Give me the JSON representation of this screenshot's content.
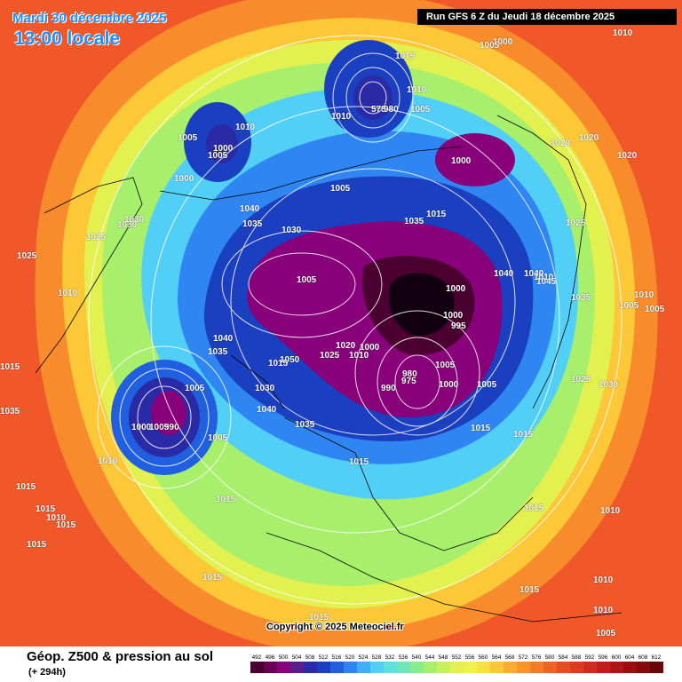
{
  "header": {
    "date": "Mardi 30 décembre 2025",
    "local_time": "13:00 locale",
    "run": "Run GFS 6 Z du Jeudi 18 décembre 2025"
  },
  "copyright": "Copyright © 2025 Meteociel.fr",
  "footer": {
    "title": "Géop. Z500 & pression au sol",
    "range": "(+ 294h)"
  },
  "legend": {
    "labels": [
      "492",
      "496",
      "500",
      "504",
      "508",
      "512",
      "516",
      "520",
      "524",
      "528",
      "532",
      "536",
      "540",
      "544",
      "548",
      "552",
      "556",
      "560",
      "564",
      "568",
      "572",
      "576",
      "580",
      "584",
      "588",
      "592",
      "596",
      "600",
      "604",
      "608",
      "612"
    ],
    "colors": [
      "#4a0030",
      "#6a0055",
      "#88007a",
      "#5a1e8c",
      "#2a2aa6",
      "#1a3fc0",
      "#1f5fe0",
      "#2f86f2",
      "#40aef8",
      "#52cff7",
      "#5fe0e0",
      "#6ee8b6",
      "#86ee8a",
      "#a8f06c",
      "#c8f05a",
      "#e2f050",
      "#f0f04a",
      "#f8e040",
      "#fcc838",
      "#fcac30",
      "#fc942a",
      "#f47c26",
      "#ee6424",
      "#e64e22",
      "#de3c20",
      "#d22a1e",
      "#c41c1c",
      "#b01416",
      "#9a0e10",
      "#840a0c",
      "#6a0608"
    ]
  },
  "pressure_labels": [
    {
      "t": "1015"
    },
    {
      "t": "1005"
    },
    {
      "t": "1000"
    },
    {
      "t": "1010"
    },
    {
      "t": "1005"
    },
    {
      "t": "575"
    },
    {
      "t": "980"
    },
    {
      "t": "1010"
    },
    {
      "t": "1005"
    },
    {
      "t": "1000"
    },
    {
      "t": "1020"
    },
    {
      "t": "1020"
    },
    {
      "t": "1020"
    },
    {
      "t": "1010"
    },
    {
      "t": "1010"
    },
    {
      "t": "1005"
    },
    {
      "t": "1000"
    },
    {
      "t": "1005"
    },
    {
      "t": "1000"
    },
    {
      "t": "1015"
    },
    {
      "t": "1035"
    },
    {
      "t": "1025"
    },
    {
      "t": "1025"
    },
    {
      "t": "1030"
    },
    {
      "t": "1025"
    },
    {
      "t": "1030"
    },
    {
      "t": "1040"
    },
    {
      "t": "1035"
    },
    {
      "t": "1030"
    },
    {
      "t": "1040"
    },
    {
      "t": "1040"
    },
    {
      "t": "1010"
    },
    {
      "t": "1010"
    },
    {
      "t": "1005"
    },
    {
      "t": "1005"
    },
    {
      "t": "1045"
    },
    {
      "t": "1035"
    },
    {
      "t": "1010"
    },
    {
      "t": "1005"
    },
    {
      "t": "1000"
    },
    {
      "t": "1000"
    },
    {
      "t": "995"
    },
    {
      "t": "1040"
    },
    {
      "t": "1035"
    },
    {
      "t": "1020"
    },
    {
      "t": "1000"
    },
    {
      "t": "1025"
    },
    {
      "t": "1010"
    },
    {
      "t": "1050"
    },
    {
      "t": "1015"
    },
    {
      "t": "1005"
    },
    {
      "t": "1030"
    },
    {
      "t": "980"
    },
    {
      "t": "975"
    },
    {
      "t": "990"
    },
    {
      "t": "1005"
    },
    {
      "t": "1000"
    },
    {
      "t": "1005"
    },
    {
      "t": "1025"
    },
    {
      "t": "1030"
    },
    {
      "t": "1015"
    },
    {
      "t": "1015"
    },
    {
      "t": "1005"
    },
    {
      "t": "1000"
    },
    {
      "t": "990"
    },
    {
      "t": "1005"
    },
    {
      "t": "1040"
    },
    {
      "t": "1035"
    },
    {
      "t": "1015"
    },
    {
      "t": "1010"
    },
    {
      "t": "1015"
    },
    {
      "t": "1035"
    },
    {
      "t": "1015"
    },
    {
      "t": "1015"
    },
    {
      "t": "1010"
    },
    {
      "t": "1015"
    },
    {
      "t": "1015"
    },
    {
      "t": "1015"
    },
    {
      "t": "1015"
    },
    {
      "t": "1010"
    },
    {
      "t": "1015"
    },
    {
      "t": "1015"
    },
    {
      "t": "1010"
    },
    {
      "t": "1010"
    },
    {
      "t": "1005"
    },
    {
      "t": "1015"
    }
  ]
}
